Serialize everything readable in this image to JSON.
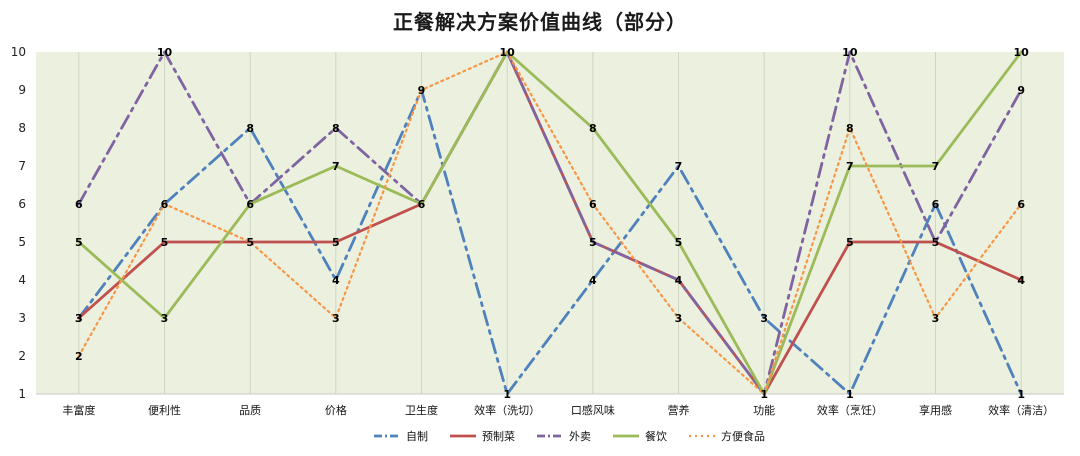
{
  "chart_data": {
    "type": "line",
    "title": "正餐解决方案价值曲线（部分）",
    "categories": [
      "丰富度",
      "便利性",
      "品质",
      "价格",
      "卫生度",
      "效率（洗切）",
      "口感风味",
      "营养",
      "功能",
      "效率（烹饪）",
      "享用感",
      "效率（清洁）"
    ],
    "ylim": [
      1,
      10
    ],
    "yticks": [
      1,
      2,
      3,
      4,
      5,
      6,
      7,
      8,
      9,
      10
    ],
    "grid": "vertical",
    "legend_position": "bottom",
    "plot_background": "#ebf1de",
    "series": [
      {
        "name": "自制",
        "color": "#4f81bd",
        "dash": "dashdot",
        "values": [
          3,
          6,
          8,
          4,
          9,
          1,
          4,
          7,
          3,
          1,
          6,
          1
        ]
      },
      {
        "name": "预制菜",
        "color": "#c0504d",
        "dash": "solid",
        "values": [
          3,
          5,
          5,
          5,
          6,
          10,
          5,
          4,
          1,
          5,
          5,
          4
        ]
      },
      {
        "name": "外卖",
        "color": "#8064a2",
        "dash": "dashdot",
        "values": [
          6,
          10,
          6,
          8,
          6,
          10,
          5,
          4,
          1,
          10,
          5,
          9
        ]
      },
      {
        "name": "餐饮",
        "color": "#9bbb59",
        "dash": "solid",
        "values": [
          5,
          3,
          6,
          7,
          6,
          10,
          8,
          5,
          1,
          7,
          7,
          10
        ]
      },
      {
        "name": "方便食品",
        "color": "#f79646",
        "dash": "dotted",
        "values": [
          2,
          6,
          5,
          3,
          9,
          10,
          6,
          3,
          1,
          8,
          3,
          6
        ]
      }
    ],
    "data_labels": {
      "自制": [
        3,
        6,
        8,
        4,
        9,
        1,
        4,
        7,
        3,
        1,
        6,
        1
      ],
      "预制菜": [
        3,
        5,
        5,
        5,
        6,
        10,
        5,
        4,
        1,
        5,
        5,
        4
      ],
      "外卖": [
        6,
        10,
        null,
        8,
        null,
        null,
        null,
        null,
        null,
        10,
        null,
        9
      ],
      "餐饮": [
        5,
        3,
        6,
        7,
        null,
        null,
        8,
        5,
        null,
        7,
        7,
        10
      ],
      "方便食品": [
        2,
        null,
        null,
        3,
        null,
        null,
        6,
        3,
        null,
        8,
        3,
        6
      ]
    }
  }
}
